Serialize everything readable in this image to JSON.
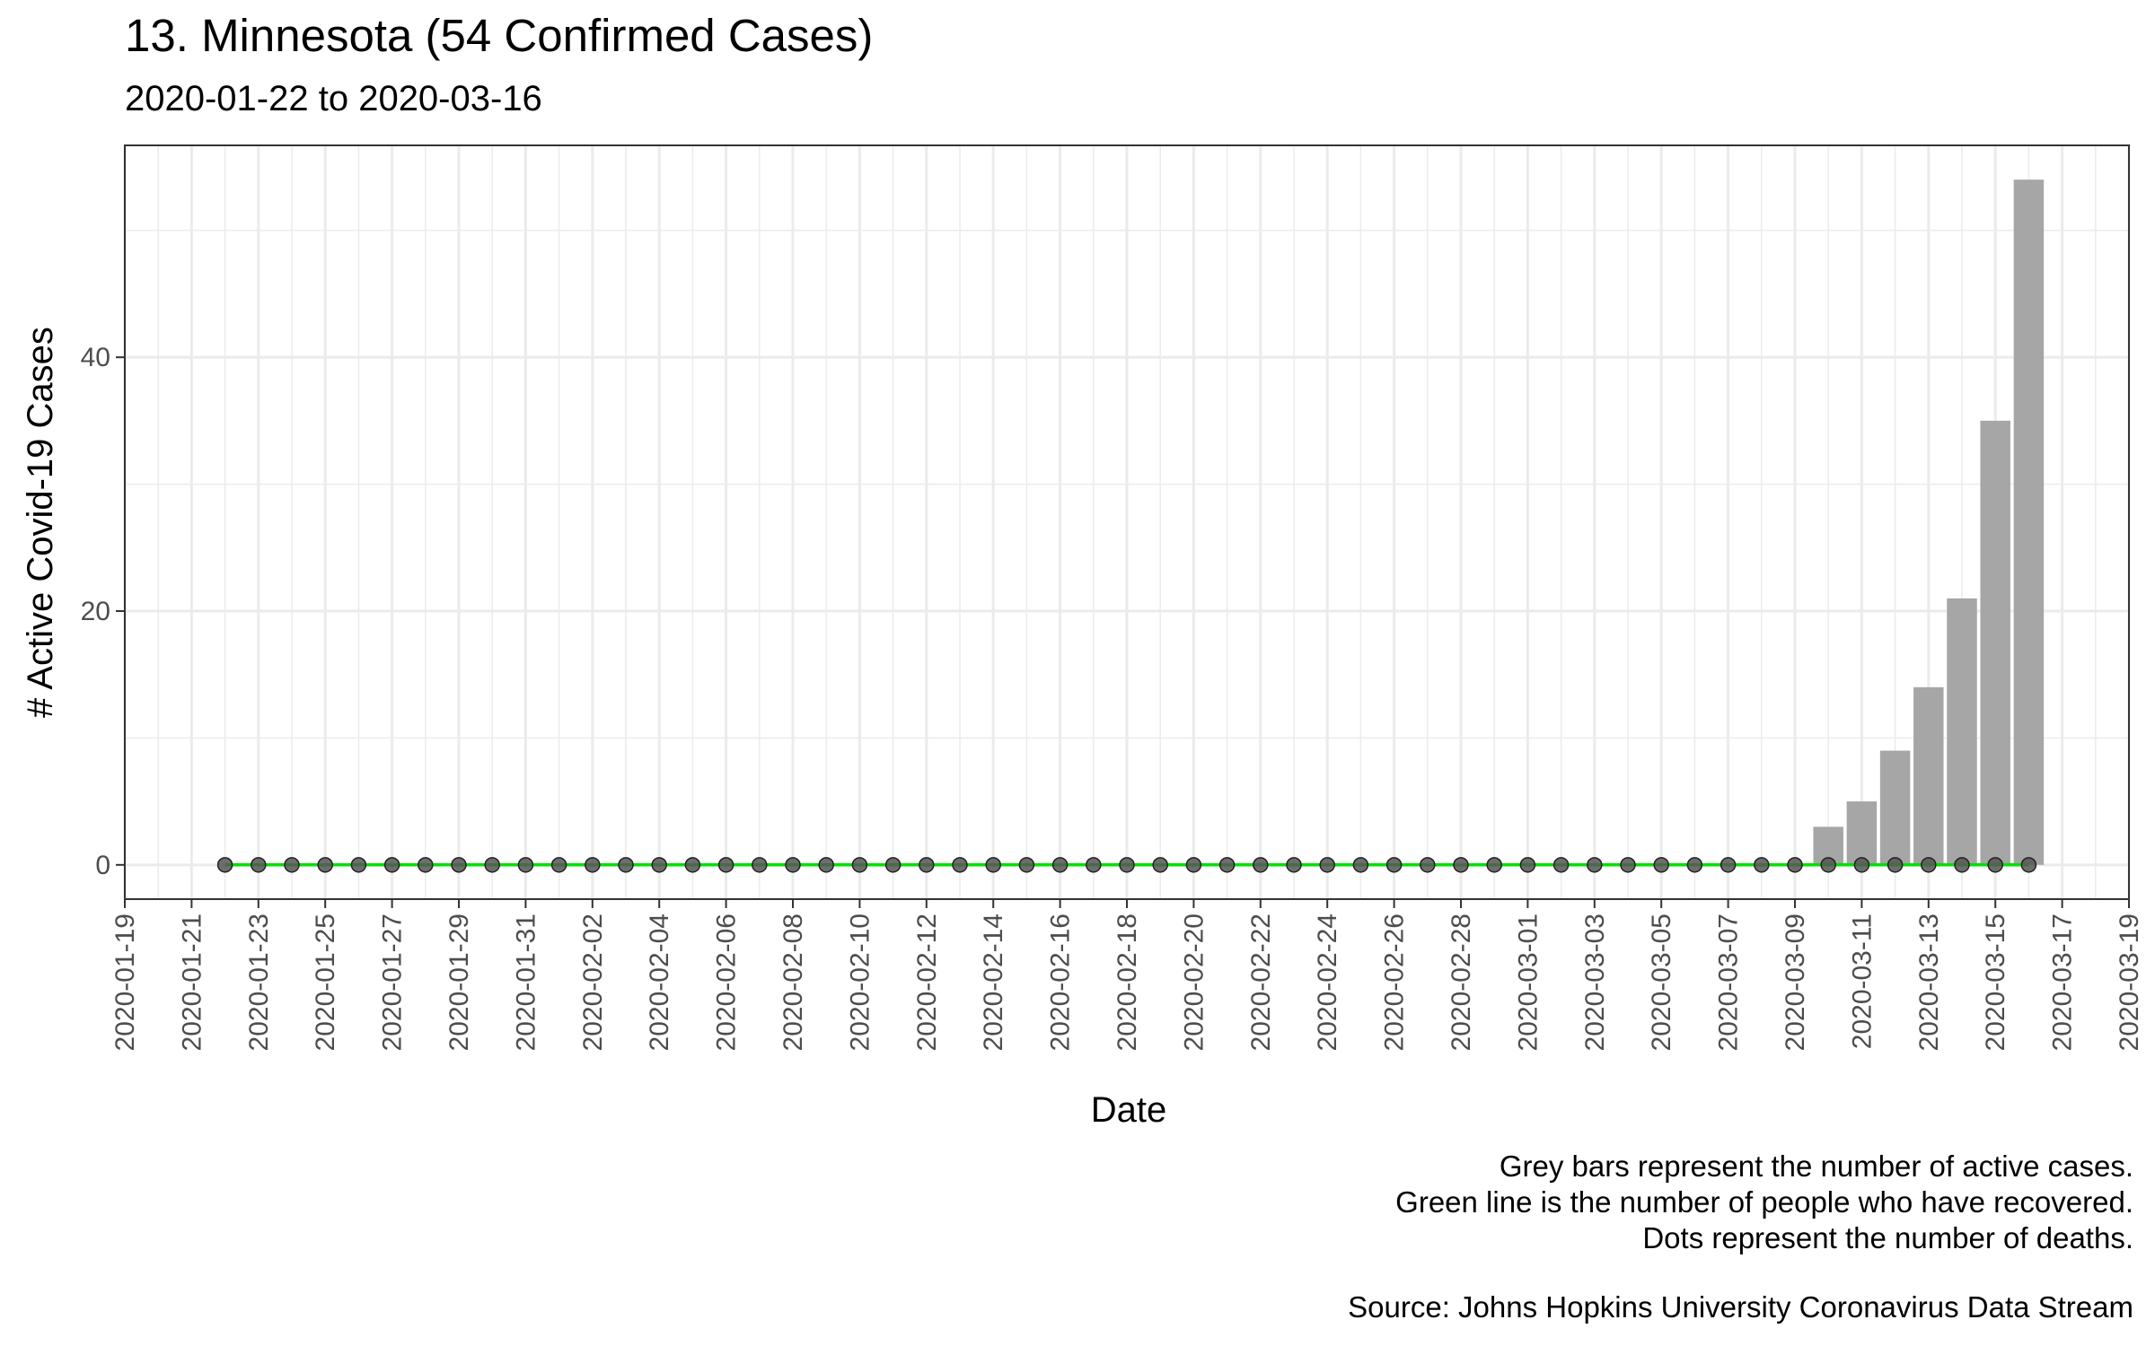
{
  "chart_data": {
    "type": "bar",
    "title": "13. Minnesota (54 Confirmed Cases)",
    "subtitle": "2020-01-22 to 2020-03-16",
    "xlabel": "Date",
    "ylabel": "# Active Covid-19 Cases",
    "x_range": [
      "2020-01-19",
      "2020-03-19"
    ],
    "ylim": [
      -2.7,
      56.7
    ],
    "y_ticks": [
      0,
      20,
      40
    ],
    "x_tick_labels": [
      "2020-01-19",
      "2020-01-21",
      "2020-01-23",
      "2020-01-25",
      "2020-01-27",
      "2020-01-29",
      "2020-01-31",
      "2020-02-02",
      "2020-02-04",
      "2020-02-06",
      "2020-02-08",
      "2020-02-10",
      "2020-02-12",
      "2020-02-14",
      "2020-02-16",
      "2020-02-18",
      "2020-02-20",
      "2020-02-22",
      "2020-02-24",
      "2020-02-26",
      "2020-02-28",
      "2020-03-01",
      "2020-03-03",
      "2020-03-05",
      "2020-03-07",
      "2020-03-09",
      "2020-03-11",
      "2020-03-13",
      "2020-03-15",
      "2020-03-17",
      "2020-03-19"
    ],
    "grid": true,
    "dates_start": "2020-01-22",
    "dates_end": "2020-03-16",
    "active_cases": [
      {
        "date": "2020-03-10",
        "value": 3
      },
      {
        "date": "2020-03-11",
        "value": 5
      },
      {
        "date": "2020-03-12",
        "value": 9
      },
      {
        "date": "2020-03-13",
        "value": 14
      },
      {
        "date": "2020-03-14",
        "value": 21
      },
      {
        "date": "2020-03-15",
        "value": 35
      },
      {
        "date": "2020-03-16",
        "value": 54
      }
    ],
    "active_cases_default": 0,
    "recovered_default": 0,
    "deaths_default": 0,
    "colors": {
      "bars": "#a6a6a6",
      "recovered_line": "#00e000",
      "death_dots": "#555555",
      "grid": "#ebebeb",
      "panel_border": "#333333"
    }
  },
  "caption": {
    "line1": "Grey bars represent the number of active cases.",
    "line2": "Green line is the number of people who have recovered.",
    "line3": "Dots represent the number of deaths.",
    "source": "Source: Johns Hopkins University Coronavirus Data Stream"
  }
}
